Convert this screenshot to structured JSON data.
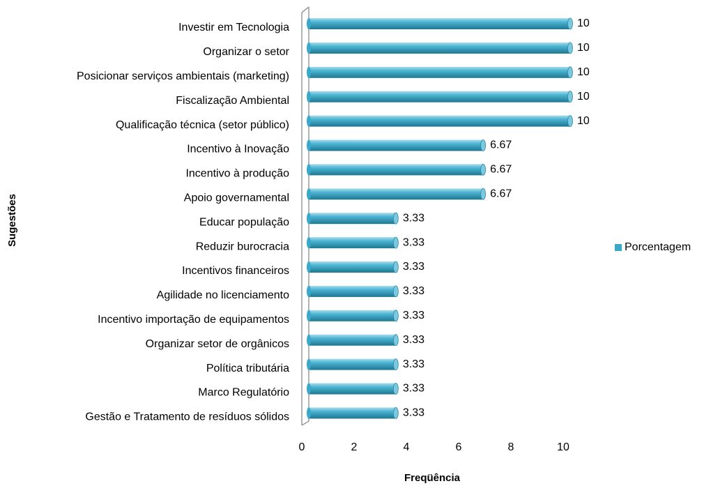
{
  "chart_data": {
    "type": "bar",
    "orientation": "horizontal",
    "categories": [
      "Investir em Tecnologia",
      "Organizar o setor",
      "Posicionar serviços ambientais (marketing)",
      "Fiscalização Ambiental",
      "Qualificação técnica (setor público)",
      "Incentivo à Inovação",
      "Incentivo à produção ",
      "Apoio governamental",
      "Educar população",
      "Reduzir burocracia",
      "Incentivos financeiros",
      "Agilidade no licenciamento",
      "Incentivo importação de equipamentos",
      "Organizar setor de orgânicos",
      "Política tributária",
      "Marco Regulatório",
      "Gestão e Tratamento de resíduos sólidos"
    ],
    "series": [
      {
        "name": "Porcentagem",
        "color": "#3aa8c8",
        "values": [
          10,
          10,
          10,
          10,
          10,
          6.67,
          6.67,
          6.67,
          3.33,
          3.33,
          3.33,
          3.33,
          3.33,
          3.33,
          3.33,
          3.33,
          3.33
        ]
      }
    ],
    "xlim": [
      0,
      10
    ],
    "xticks": [
      0,
      2,
      4,
      6,
      8,
      10
    ],
    "x_label": "Freqüência",
    "y_label": "Sugestões",
    "legend": "right"
  }
}
